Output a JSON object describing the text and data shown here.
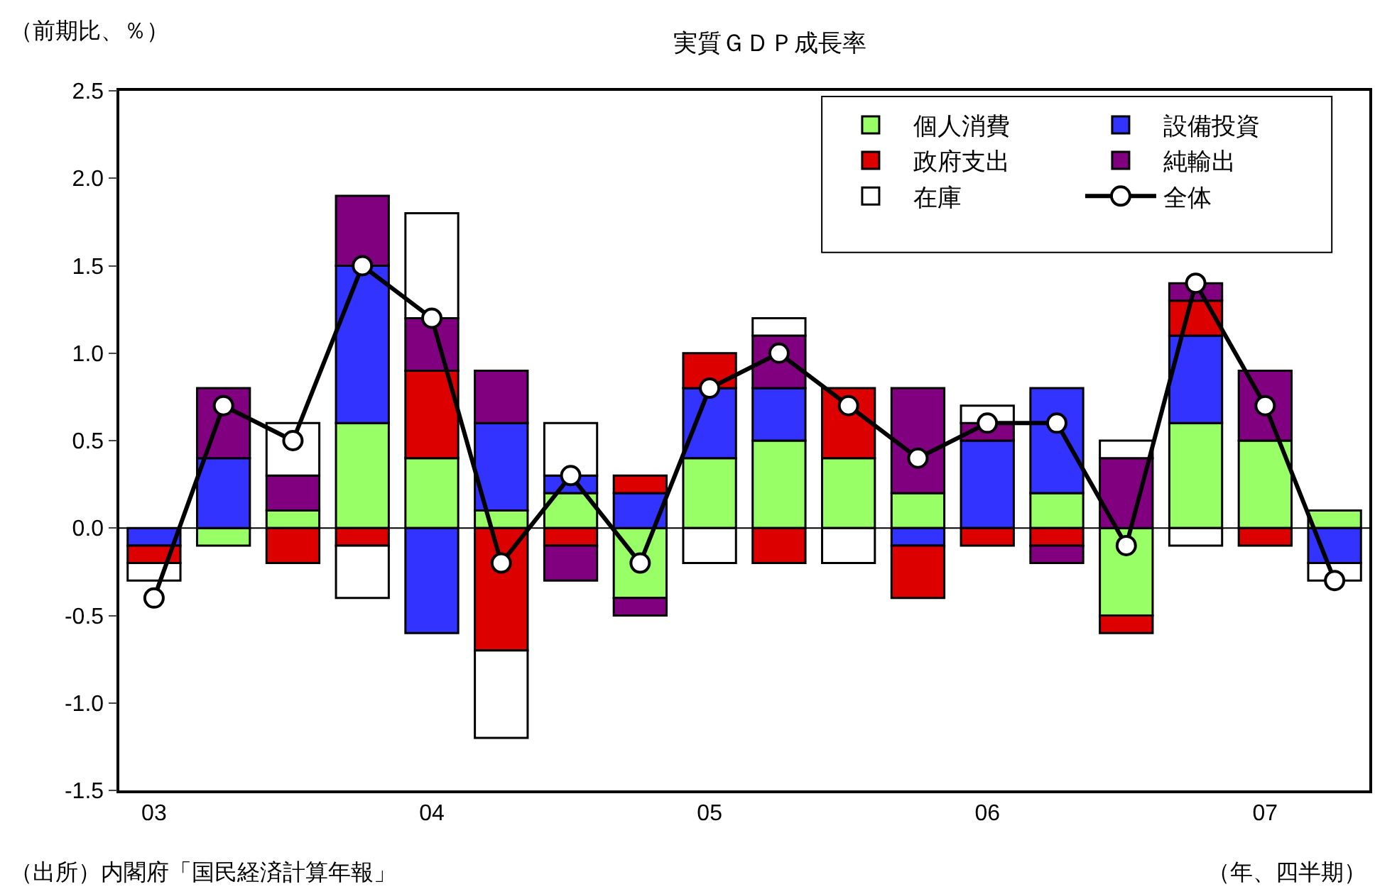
{
  "chart_data": {
    "type": "bar",
    "title": "実質ＧＤＰ成長率",
    "ylabel": "（前期比、％）",
    "xlabel": "（年、四半期）",
    "annotations": [
      "（出所）内閣府「国民経済計算年報」"
    ],
    "categories": [
      "03",
      null,
      null,
      null,
      "04",
      null,
      null,
      null,
      "05",
      null,
      null,
      null,
      "06",
      null,
      null,
      null,
      "07",
      null
    ],
    "stacked": true,
    "series": [
      {
        "name": "個人消費",
        "color": "#99ff66",
        "values": [
          null,
          -0.1,
          0.1,
          0.6,
          0.4,
          0.1,
          0.2,
          -0.4,
          0.4,
          0.5,
          0.4,
          0.2,
          null,
          0.2,
          -0.5,
          0.6,
          0.5,
          0.1
        ]
      },
      {
        "name": "設備投資",
        "color": "#3333ff",
        "values": [
          -0.1,
          0.4,
          null,
          0.9,
          -0.6,
          0.5,
          0.1,
          0.2,
          0.4,
          0.3,
          null,
          -0.1,
          0.5,
          0.6,
          null,
          0.5,
          null,
          -0.2
        ]
      },
      {
        "name": "政府支出",
        "color": "#dd0000",
        "values": [
          -0.1,
          null,
          -0.2,
          -0.1,
          0.5,
          -0.7,
          -0.1,
          0.1,
          0.2,
          -0.2,
          0.4,
          -0.3,
          -0.1,
          -0.1,
          -0.1,
          0.2,
          -0.1,
          null
        ]
      },
      {
        "name": "純輸出",
        "color": "#800080",
        "values": [
          null,
          0.4,
          0.2,
          0.4,
          0.3,
          0.3,
          -0.2,
          -0.1,
          null,
          0.3,
          null,
          0.6,
          0.1,
          -0.1,
          0.4,
          0.1,
          0.4,
          null
        ]
      },
      {
        "name": "在庫",
        "color": "#ffffff",
        "values": [
          -0.1,
          null,
          0.3,
          -0.3,
          0.6,
          -0.5,
          0.3,
          null,
          -0.2,
          0.1,
          -0.2,
          null,
          0.1,
          null,
          0.1,
          -0.1,
          null,
          -0.1
        ]
      },
      {
        "name": "全体",
        "type": "line",
        "color": "#000000",
        "marker": "circle",
        "values": [
          -0.4,
          0.7,
          0.5,
          1.5,
          1.2,
          -0.2,
          0.3,
          -0.2,
          0.8,
          1.0,
          0.7,
          0.4,
          0.6,
          0.6,
          -0.1,
          1.4,
          0.7,
          -0.3
        ]
      }
    ],
    "ylim": [
      -1.5,
      2.5
    ],
    "yticks": [
      -1.5,
      {
        "value": -1,
        "label": "-1.0"
      },
      -0.5,
      {
        "value": 0,
        "label": "0.0"
      },
      0.5,
      {
        "value": 1,
        "label": "1.0"
      },
      1.5,
      {
        "value": 2,
        "label": "2.0"
      },
      2.5
    ],
    "ref_lines": [
      {
        "axis": "y",
        "value": 0,
        "color": "#000000"
      }
    ],
    "legend": "top right"
  }
}
